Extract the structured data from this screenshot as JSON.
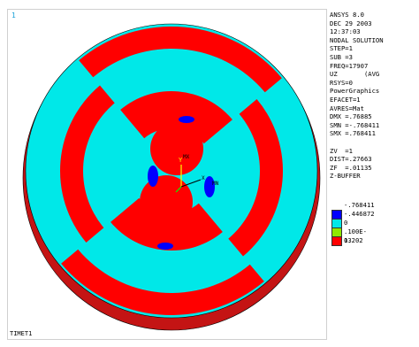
{
  "window": {
    "corner_number": "1",
    "plot_title": "TIMET1"
  },
  "info_lines": [
    "ANSYS 8.0",
    "DEC 29 2003",
    "12:37:03",
    "NODAL SOLUTION",
    "STEP=1",
    "SUB =3",
    "FREQ=17907",
    "UZ       (AVG",
    "RSYS=0",
    "PowerGraphics",
    "EFACET=1",
    "AVRES=Mat",
    "DMX =.76885",
    "SMN =-.768411",
    "SMX =.768411",
    "",
    "ZV  =1",
    "DIST=.27663",
    "ZF  =.01135",
    "Z-BUFFER"
  ],
  "legend": {
    "top_label": "-.768411",
    "rows": [
      {
        "label": "-.446872",
        "color": "#0000ff"
      },
      {
        "label": "0",
        "color": "#00e8e8"
      },
      {
        "label": ".100E-03",
        "color": "#90e800"
      },
      {
        "label": "1.202",
        "color": "#ff0000"
      }
    ]
  },
  "annotations": {
    "max_label": "MX",
    "min_label": "MN",
    "axis_y": "Y",
    "axis_x": "X"
  },
  "colors": {
    "rim": "#c41414",
    "red": "#ff0000",
    "cyan": "#00e8e8",
    "blue": "#0000ff",
    "outline": "#000000"
  }
}
